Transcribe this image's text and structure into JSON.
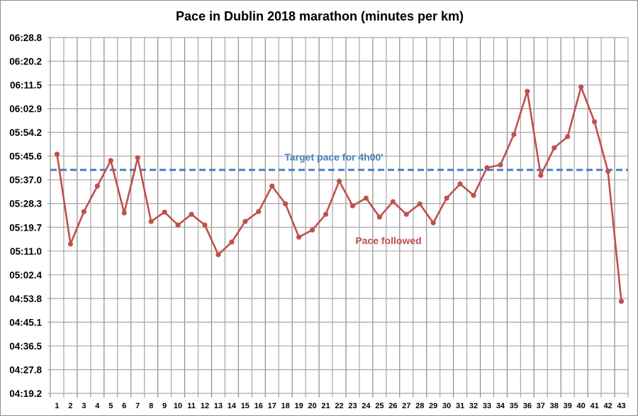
{
  "chart_data": {
    "type": "line",
    "title": "Pace in Dublin 2018 marathon (minutes per km)",
    "xlabel": "",
    "ylabel": "",
    "categories": [
      "1",
      "2",
      "3",
      "4",
      "5",
      "6",
      "7",
      "8",
      "9",
      "10",
      "11",
      "12",
      "13",
      "14",
      "15",
      "16",
      "17",
      "18",
      "19",
      "20",
      "21",
      "22",
      "23",
      "24",
      "25",
      "26",
      "27",
      "28",
      "29",
      "30",
      "31",
      "32",
      "33",
      "34",
      "35",
      "36",
      "37",
      "38",
      "39",
      "40",
      "41",
      "42",
      "43"
    ],
    "y_ticks": [
      "04:19.2",
      "04:27.8",
      "04:36.5",
      "04:45.1",
      "04:53.8",
      "05:02.4",
      "05:11.0",
      "05:19.7",
      "05:28.3",
      "05:37.0",
      "05:45.6",
      "05:54.2",
      "06:02.9",
      "06:11.5",
      "06:20.2",
      "06:28.8"
    ],
    "ylim": [
      "04:19.2",
      "06:28.8"
    ],
    "grid": true,
    "series": [
      {
        "name": "Pace followed",
        "color": "#c0504d",
        "values": [
          "05:46.3",
          "05:13.6",
          "05:25.4",
          "05:34.7",
          "05:44.0",
          "05:24.9",
          "05:45.0",
          "05:21.8",
          "05:25.2",
          "05:20.5",
          "05:24.4",
          "05:20.5",
          "05:09.7",
          "05:14.3",
          "05:21.8",
          "05:25.4",
          "05:34.7",
          "05:28.2",
          "05:16.1",
          "05:18.7",
          "05:24.4",
          "05:36.5",
          "05:27.5",
          "05:30.3",
          "05:23.4",
          "05:29.0",
          "05:24.4",
          "05:28.2",
          "05:21.3",
          "05:30.3",
          "05:35.5",
          "05:31.3",
          "05:41.4",
          "05:42.4",
          "05:53.5",
          "06:09.2",
          "05:38.6",
          "05:48.6",
          "05:52.7",
          "06:10.8",
          "05:58.1",
          "05:40.1",
          "04:52.7"
        ]
      }
    ],
    "reference_line": {
      "name": "Target pace for 4h00'",
      "value": "05:40.6",
      "color": "#4a7ebb",
      "style": "dashed"
    }
  }
}
